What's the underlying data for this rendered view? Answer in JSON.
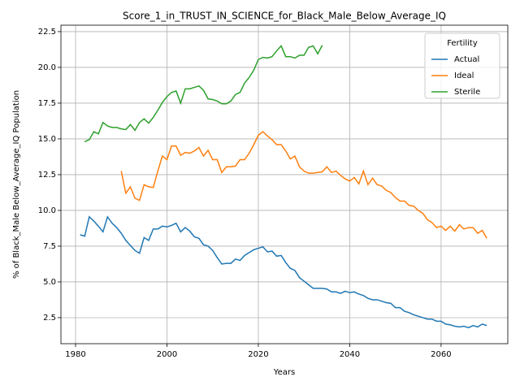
{
  "chart_data": {
    "type": "line",
    "title": "Score_1_in_TRUST_IN_SCIENCE_for_Black_Male_Below_Average_IQ",
    "xlabel": "Years",
    "ylabel": "% of Black_Male Below_Average_IQ Population",
    "legend_title": "Fertility",
    "legend": "upper right",
    "grid": true,
    "xlim": [
      1976.8,
      2074.6
    ],
    "ylim": [
      0.68,
      22.95
    ],
    "xticks": [
      1980,
      2000,
      2020,
      2040,
      2060
    ],
    "yticks": [
      2.5,
      {
        "value": 5,
        "label": "5.0"
      },
      7.5,
      {
        "value": 10,
        "label": "10.0"
      },
      12.5,
      {
        "value": 15,
        "label": "15.0"
      },
      17.5,
      {
        "value": 20,
        "label": "20.0"
      },
      22.5
    ],
    "x": [
      1981,
      1982,
      1983,
      1984,
      1985,
      1986,
      1987,
      1988,
      1989,
      1990,
      1991,
      1992,
      1993,
      1994,
      1995,
      1996,
      1997,
      1998,
      1999,
      2000,
      2001,
      2002,
      2003,
      2004,
      2005,
      2006,
      2007,
      2008,
      2009,
      2010,
      2011,
      2012,
      2013,
      2014,
      2015,
      2016,
      2017,
      2018,
      2019,
      2020,
      2021,
      2022,
      2023,
      2024,
      2025,
      2026,
      2027,
      2028,
      2029,
      2030,
      2031,
      2032,
      2033,
      2034,
      2035,
      2036,
      2037,
      2038,
      2039,
      2040,
      2041,
      2042,
      2043,
      2044,
      2045,
      2046,
      2047,
      2048,
      2049,
      2050,
      2051,
      2052,
      2053,
      2054,
      2055,
      2056,
      2057,
      2058,
      2059,
      2060,
      2061,
      2062,
      2063,
      2064,
      2065,
      2066,
      2067,
      2068,
      2069,
      2070
    ],
    "series": [
      {
        "name": "Actual",
        "color": "#1f77b4",
        "values": [
          8.3,
          8.2,
          9.55,
          9.25,
          8.9,
          8.5,
          9.55,
          9.1,
          8.8,
          8.4,
          7.9,
          7.55,
          7.2,
          7.0,
          8.1,
          7.9,
          8.7,
          8.7,
          8.9,
          8.85,
          8.95,
          9.1,
          8.5,
          8.8,
          8.55,
          8.15,
          8.05,
          7.6,
          7.5,
          7.2,
          6.7,
          6.25,
          6.3,
          6.3,
          6.6,
          6.5,
          6.85,
          7.05,
          7.25,
          7.35,
          7.45,
          7.1,
          7.15,
          6.8,
          6.85,
          6.35,
          5.95,
          5.8,
          5.3,
          5.05,
          4.8,
          4.55,
          4.55,
          4.55,
          4.5,
          4.3,
          4.3,
          4.2,
          4.35,
          4.25,
          4.3,
          4.15,
          4.05,
          3.85,
          3.75,
          3.75,
          3.65,
          3.55,
          3.5,
          3.2,
          3.2,
          2.95,
          2.85,
          2.7,
          2.6,
          2.5,
          2.4,
          2.4,
          2.25,
          2.25,
          2.05,
          2.0,
          1.9,
          1.85,
          1.9,
          1.8,
          1.95,
          1.85,
          2.05,
          1.95
        ]
      },
      {
        "name": "Ideal",
        "color": "#ff7f0e",
        "values": [
          null,
          null,
          null,
          null,
          null,
          null,
          null,
          null,
          null,
          12.75,
          11.2,
          11.65,
          10.85,
          10.7,
          11.8,
          11.65,
          11.6,
          12.75,
          13.8,
          13.55,
          14.5,
          14.5,
          13.85,
          14.05,
          14.0,
          14.15,
          14.4,
          13.8,
          14.2,
          13.55,
          13.55,
          12.65,
          13.05,
          13.05,
          13.1,
          13.55,
          13.55,
          14.0,
          14.6,
          15.25,
          15.5,
          15.2,
          14.95,
          14.6,
          14.6,
          14.15,
          13.6,
          13.8,
          13.05,
          12.75,
          12.6,
          12.6,
          12.65,
          12.7,
          13.05,
          12.65,
          12.75,
          12.45,
          12.2,
          12.05,
          12.3,
          11.85,
          12.75,
          11.8,
          12.25,
          11.8,
          11.7,
          11.4,
          11.25,
          10.9,
          10.65,
          10.65,
          10.35,
          10.3,
          10.0,
          9.8,
          9.35,
          9.15,
          8.8,
          8.9,
          8.6,
          8.9,
          8.55,
          9.0,
          8.7,
          8.8,
          8.8,
          8.4,
          8.6,
          8.05
        ]
      },
      {
        "name": "Sterile",
        "color": "#2ca02c",
        "values": [
          null,
          14.8,
          14.95,
          15.5,
          15.35,
          16.15,
          15.9,
          15.8,
          15.8,
          15.7,
          15.65,
          16.0,
          15.6,
          16.15,
          16.4,
          16.1,
          16.5,
          17.0,
          17.55,
          17.95,
          18.25,
          18.35,
          17.5,
          18.5,
          18.5,
          18.6,
          18.7,
          18.4,
          17.8,
          17.75,
          17.65,
          17.45,
          17.45,
          17.65,
          18.1,
          18.25,
          18.9,
          19.3,
          19.8,
          20.55,
          20.7,
          20.65,
          20.75,
          21.15,
          21.5,
          20.75,
          20.75,
          20.65,
          20.85,
          20.85,
          21.4,
          21.5,
          20.95,
          21.55,
          null,
          null,
          null,
          null,
          null,
          null,
          null,
          null,
          null,
          null,
          null,
          null,
          null,
          null,
          null,
          null,
          null,
          null,
          null,
          null,
          null,
          null,
          null,
          null,
          null,
          null,
          null,
          null,
          null,
          null,
          null,
          null,
          null,
          null,
          null,
          null
        ]
      }
    ]
  }
}
